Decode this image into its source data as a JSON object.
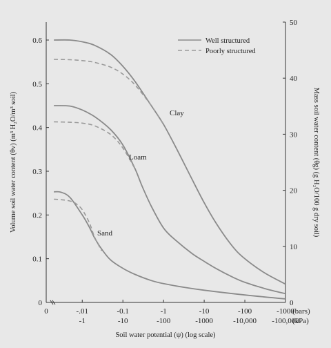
{
  "chart_data": {
    "type": "line",
    "xlabel": "Soil water potential (ψ) (log scale)",
    "ylabel_left": "Volume soil water content (θv) (m³ H₂O/m³ soil)",
    "ylabel_right": "Mass soil water content (θg) (g H₂O/100 g dry soil)",
    "x_unit_bars": "(bars)",
    "x_unit_kpa": "(kPa)",
    "x_ticks_bars": [
      "0",
      "-.01",
      "-0.1",
      "-1",
      "-10",
      "-100",
      "-1000"
    ],
    "x_ticks_kpa": [
      "-1",
      "-10",
      "-100",
      "-1000",
      "-10,000",
      "-100,000"
    ],
    "x_scale": "log (|ψ| in bars), with 0 at origin",
    "ylim_left": [
      0,
      0.6
    ],
    "y_ticks_left": [
      "0",
      "0.1",
      "0.2",
      "0.3",
      "0.4",
      "0.5",
      "0.6"
    ],
    "ylim_right": [
      0,
      50
    ],
    "y_ticks_right": [
      "0",
      "10",
      "20",
      "30",
      "40",
      "50"
    ],
    "legend": {
      "placement": "top-right",
      "entries": [
        "Well structured",
        "Poorly structured"
      ]
    },
    "curve_labels": [
      "Clay",
      "Loam",
      "Sand"
    ],
    "series": [
      {
        "name": "Well structured",
        "soil": "Clay",
        "style": "solid",
        "x": [
          -0.002,
          -0.005,
          -0.01,
          -0.02,
          -0.05,
          -0.1,
          -0.2,
          -0.5,
          -1,
          -2,
          -5,
          -10,
          -20,
          -50,
          -100,
          -300,
          -1000
        ],
        "y": [
          0.6,
          0.6,
          0.596,
          0.588,
          0.567,
          0.54,
          0.505,
          0.45,
          0.407,
          0.355,
          0.282,
          0.228,
          0.18,
          0.128,
          0.1,
          0.068,
          0.042
        ]
      },
      {
        "name": "Poorly structured",
        "soil": "Clay",
        "style": "dashed",
        "x": [
          -0.002,
          -0.005,
          -0.01,
          -0.02,
          -0.05,
          -0.1,
          -0.2,
          -0.5,
          -1
        ],
        "y": [
          0.556,
          0.555,
          0.553,
          0.549,
          0.538,
          0.522,
          0.497,
          0.45,
          0.407
        ]
      },
      {
        "name": "Well structured",
        "soil": "Loam",
        "style": "solid",
        "x": [
          -0.002,
          -0.005,
          -0.01,
          -0.02,
          -0.05,
          -0.1,
          -0.2,
          -0.3,
          -0.5,
          -1,
          -2,
          -5,
          -10,
          -20,
          -50,
          -100,
          -300,
          -1000
        ],
        "y": [
          0.45,
          0.449,
          0.44,
          0.425,
          0.395,
          0.36,
          0.305,
          0.265,
          0.22,
          0.17,
          0.142,
          0.112,
          0.094,
          0.077,
          0.058,
          0.046,
          0.032,
          0.02
        ]
      },
      {
        "name": "Poorly structured",
        "soil": "Loam",
        "style": "dashed",
        "x": [
          -0.002,
          -0.005,
          -0.01,
          -0.02,
          -0.05,
          -0.1,
          -0.2
        ],
        "y": [
          0.413,
          0.412,
          0.41,
          0.404,
          0.384,
          0.353,
          0.305
        ]
      },
      {
        "name": "Well structured",
        "soil": "Sand",
        "style": "solid",
        "x": [
          -0.002,
          -0.003,
          -0.005,
          -0.01,
          -0.015,
          -0.02,
          -0.03,
          -0.05,
          -0.1,
          -0.2,
          -0.5,
          -1,
          -3,
          -10,
          -100,
          -1000
        ],
        "y": [
          0.253,
          0.252,
          0.24,
          0.2,
          0.172,
          0.148,
          0.122,
          0.097,
          0.078,
          0.064,
          0.05,
          0.043,
          0.035,
          0.028,
          0.017,
          0.008
        ]
      },
      {
        "name": "Poorly structured",
        "soil": "Sand",
        "style": "dashed",
        "x": [
          -0.002,
          -0.003,
          -0.005,
          -0.007,
          -0.01,
          -0.015,
          -0.02,
          -0.03
        ],
        "y": [
          0.236,
          0.235,
          0.232,
          0.226,
          0.212,
          0.182,
          0.15,
          0.118
        ]
      }
    ]
  }
}
